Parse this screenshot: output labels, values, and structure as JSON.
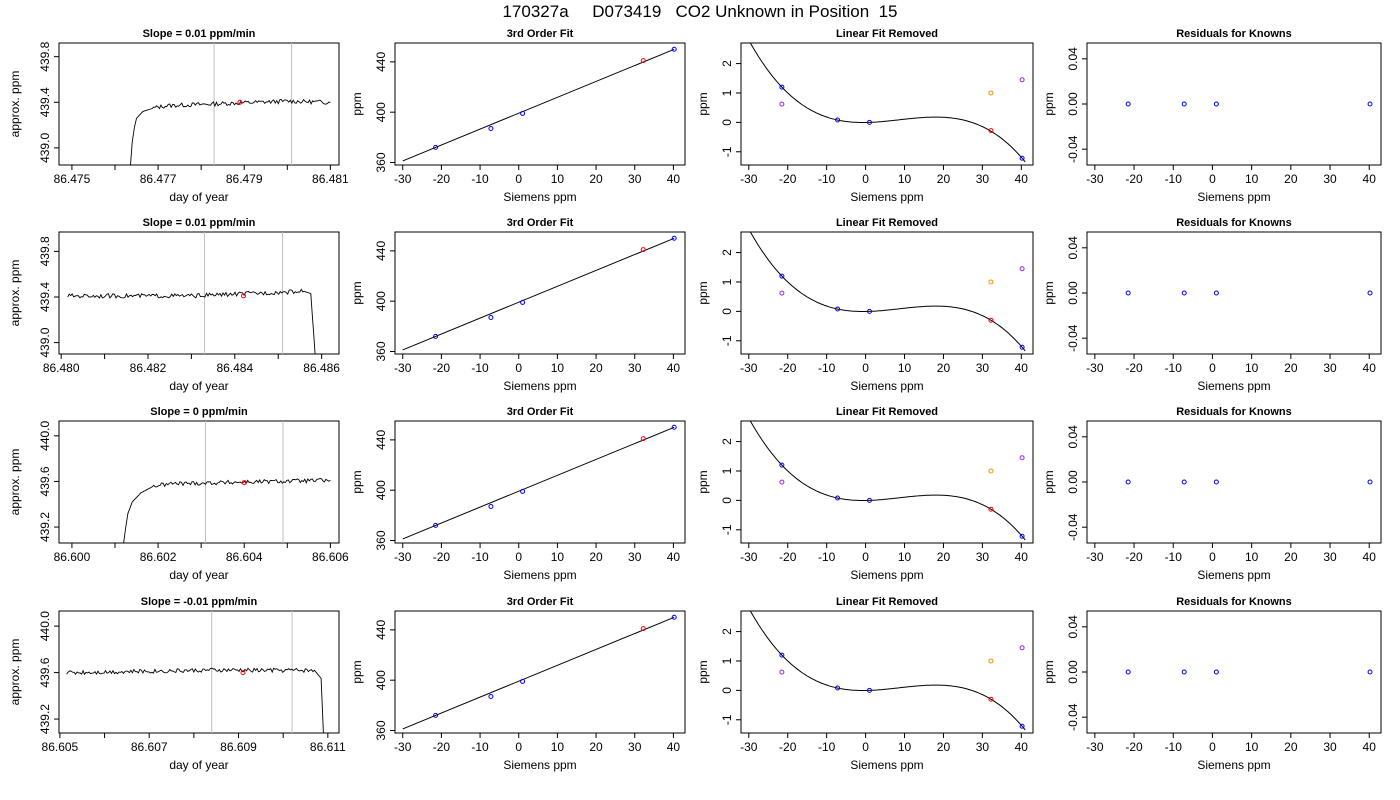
{
  "title": "170327a     D073419   CO2 Unknown in Position  15",
  "colors": {
    "unknown": "#ff0000",
    "standard": "#0000ff",
    "resid_a": "#ff8c00",
    "resid_b": "#a020f0",
    "vline": "#bebebe"
  },
  "chart_data": [
    {
      "type": "line",
      "title": "Slope =  0.01  ppm/min",
      "xlabel": "day of year",
      "ylabel": "approx. ppm",
      "xlim": [
        86.4747,
        86.4812
      ],
      "ylim": [
        438.85,
        439.92
      ],
      "xticks": [
        86.475,
        86.476,
        86.477,
        86.478,
        86.479,
        86.48,
        86.481
      ],
      "xtick_labels": [
        "86.475",
        "",
        "86.477",
        "",
        "86.479",
        "",
        "86.481"
      ],
      "yticks": [
        439.0,
        439.4,
        439.8
      ],
      "ytick_labels": [
        "439.0",
        "439.4",
        "439.8"
      ],
      "vlines": [
        86.4783,
        86.4801
      ],
      "marker": {
        "x": 86.4789,
        "y": 439.4
      },
      "segments": [
        [
          86.47636,
          438.85
        ],
        [
          86.4764,
          439.05
        ],
        [
          86.47645,
          439.18
        ],
        [
          86.4765,
          439.26
        ],
        [
          86.47665,
          439.32
        ],
        [
          86.4769,
          439.35
        ],
        [
          86.4772,
          439.37
        ],
        [
          86.48,
          439.41
        ],
        [
          86.481,
          439.4
        ]
      ]
    },
    {
      "type": "scatter",
      "title": "3rd Order Fit",
      "xlabel": "Siemens ppm",
      "ylabel": "ppm",
      "xlim": [
        -32,
        43
      ],
      "ylim": [
        358,
        455
      ],
      "xticks": [
        -30,
        -20,
        -10,
        0,
        10,
        20,
        30,
        40
      ],
      "xtick_labels": [
        "-30",
        "-20",
        "-10",
        "0",
        "10",
        "20",
        "30",
        "40"
      ],
      "yticks": [
        360,
        400,
        440
      ],
      "ytick_labels": [
        "360",
        "400",
        "440"
      ],
      "points": [
        {
          "x": -21.5,
          "y": 372
        },
        {
          "x": -7.2,
          "y": 387
        },
        {
          "x": 1.0,
          "y": 399
        },
        {
          "x": 40.2,
          "y": 450
        }
      ],
      "unknown": {
        "x": 32.2,
        "y": 441
      }
    },
    {
      "type": "scatter",
      "title": "Linear Fit Removed",
      "xlabel": "Siemens ppm",
      "ylabel": "ppm",
      "xlim": [
        -32,
        43
      ],
      "ylim": [
        -1.45,
        2.7
      ],
      "xticks": [
        -30,
        -20,
        -10,
        0,
        10,
        20,
        30,
        40
      ],
      "xtick_labels": [
        "-30",
        "-20",
        "-10",
        "0",
        "10",
        "20",
        "30",
        "40"
      ],
      "yticks": [
        -1,
        0,
        1,
        2
      ],
      "ytick_labels": [
        "-1",
        "0",
        "1",
        "2"
      ],
      "points": [
        {
          "x": -21.5,
          "y": 1.2
        },
        {
          "x": -7.2,
          "y": 0.08
        },
        {
          "x": 1.0,
          "y": 0.0
        },
        {
          "x": 40.2,
          "y": -1.22
        }
      ],
      "unknown": {
        "x": 32.2,
        "y": -0.28
      },
      "extra": [
        {
          "x": -21.5,
          "y": 0.62,
          "color": "#a020f0"
        },
        {
          "x": 32.2,
          "y": 1.0,
          "color": "#ff8c00"
        },
        {
          "x": 40.2,
          "y": 1.45,
          "color": "#a020f0"
        }
      ]
    },
    {
      "type": "scatter",
      "title": "Residuals for Knowns",
      "xlabel": "Siemens ppm",
      "ylabel": "ppm",
      "xlim": [
        -32,
        43
      ],
      "ylim": [
        -0.054,
        0.054
      ],
      "xticks": [
        -30,
        -20,
        -10,
        0,
        10,
        20,
        30,
        40
      ],
      "xtick_labels": [
        "-30",
        "-20",
        "-10",
        "0",
        "10",
        "20",
        "30",
        "40"
      ],
      "yticks": [
        -0.04,
        0.0,
        0.04
      ],
      "ytick_labels": [
        "-0.04",
        "0.00",
        "0.04"
      ],
      "points": [
        {
          "x": -21.5,
          "y": 0
        },
        {
          "x": -7.2,
          "y": 0
        },
        {
          "x": 1.0,
          "y": 0
        },
        {
          "x": 40.2,
          "y": 0
        }
      ]
    },
    {
      "type": "line",
      "title": "Slope =  0.01  ppm/min",
      "xlabel": "day of year",
      "ylabel": "approx. ppm",
      "xlim": [
        86.47995,
        86.4864
      ],
      "ylim": [
        438.9,
        439.97
      ],
      "xticks": [
        86.48,
        86.481,
        86.482,
        86.483,
        86.484,
        86.485,
        86.486
      ],
      "xtick_labels": [
        "86.480",
        "",
        "86.482",
        "",
        "86.484",
        "",
        "86.486"
      ],
      "yticks": [
        439.0,
        439.4,
        439.8
      ],
      "ytick_labels": [
        "439.0",
        "439.4",
        "439.8"
      ],
      "vlines": [
        86.4833,
        86.4851
      ],
      "marker": {
        "x": 86.4842,
        "y": 439.41
      },
      "segments": [
        [
          86.48015,
          439.41
        ],
        [
          86.483,
          439.41
        ],
        [
          86.4856,
          439.45
        ],
        [
          86.48575,
          439.43
        ],
        [
          86.48585,
          438.9
        ]
      ]
    },
    {
      "type": "scatter",
      "title": "3rd Order Fit",
      "xlabel": "Siemens ppm",
      "ylabel": "ppm",
      "xlim": [
        -32,
        43
      ],
      "ylim": [
        358,
        455
      ],
      "xticks": [
        -30,
        -20,
        -10,
        0,
        10,
        20,
        30,
        40
      ],
      "xtick_labels": [
        "-30",
        "-20",
        "-10",
        "0",
        "10",
        "20",
        "30",
        "40"
      ],
      "yticks": [
        360,
        400,
        440
      ],
      "ytick_labels": [
        "360",
        "400",
        "440"
      ],
      "points": [
        {
          "x": -21.5,
          "y": 372
        },
        {
          "x": -7.2,
          "y": 387
        },
        {
          "x": 1.0,
          "y": 399
        },
        {
          "x": 40.2,
          "y": 450
        }
      ],
      "unknown": {
        "x": 32.2,
        "y": 441
      }
    },
    {
      "type": "scatter",
      "title": "Linear Fit Removed",
      "xlabel": "Siemens ppm",
      "ylabel": "ppm",
      "xlim": [
        -32,
        43
      ],
      "ylim": [
        -1.45,
        2.7
      ],
      "xticks": [
        -30,
        -20,
        -10,
        0,
        10,
        20,
        30,
        40
      ],
      "xtick_labels": [
        "-30",
        "-20",
        "-10",
        "0",
        "10",
        "20",
        "30",
        "40"
      ],
      "yticks": [
        -1,
        0,
        1,
        2
      ],
      "ytick_labels": [
        "-1",
        "0",
        "1",
        "2"
      ],
      "points": [
        {
          "x": -21.5,
          "y": 1.2
        },
        {
          "x": -7.2,
          "y": 0.08
        },
        {
          "x": 1.0,
          "y": 0.0
        },
        {
          "x": 40.2,
          "y": -1.22
        }
      ],
      "unknown": {
        "x": 32.2,
        "y": -0.3
      },
      "extra": [
        {
          "x": -21.5,
          "y": 0.62,
          "color": "#a020f0"
        },
        {
          "x": 32.2,
          "y": 1.0,
          "color": "#ff8c00"
        },
        {
          "x": 40.2,
          "y": 1.45,
          "color": "#a020f0"
        }
      ]
    },
    {
      "type": "scatter",
      "title": "Residuals for Knowns",
      "xlabel": "Siemens ppm",
      "ylabel": "ppm",
      "xlim": [
        -32,
        43
      ],
      "ylim": [
        -0.054,
        0.054
      ],
      "xticks": [
        -30,
        -20,
        -10,
        0,
        10,
        20,
        30,
        40
      ],
      "xtick_labels": [
        "-30",
        "-20",
        "-10",
        "0",
        "10",
        "20",
        "30",
        "40"
      ],
      "yticks": [
        -0.04,
        0.0,
        0.04
      ],
      "ytick_labels": [
        "-0.04",
        "0.00",
        "0.04"
      ],
      "points": [
        {
          "x": -21.5,
          "y": 0
        },
        {
          "x": -7.2,
          "y": 0
        },
        {
          "x": 1.0,
          "y": 0
        },
        {
          "x": 40.2,
          "y": 0
        }
      ]
    },
    {
      "type": "line",
      "title": "Slope =  0  ppm/min",
      "xlabel": "day of year",
      "ylabel": "approx. ppm",
      "xlim": [
        86.5997,
        86.6062
      ],
      "ylim": [
        439.06,
        440.13
      ],
      "xticks": [
        86.6,
        86.601,
        86.602,
        86.603,
        86.604,
        86.605,
        86.606
      ],
      "xtick_labels": [
        "86.600",
        "",
        "86.602",
        "",
        "86.604",
        "",
        "86.606"
      ],
      "yticks": [
        439.2,
        439.6,
        440.0
      ],
      "ytick_labels": [
        "439.2",
        "439.6",
        "440.0"
      ],
      "vlines": [
        86.6031,
        86.6049
      ],
      "marker": {
        "x": 86.604,
        "y": 439.59
      },
      "segments": [
        [
          86.6012,
          439.06
        ],
        [
          86.60125,
          439.2
        ],
        [
          86.6013,
          439.32
        ],
        [
          86.6014,
          439.42
        ],
        [
          86.6016,
          439.5
        ],
        [
          86.6019,
          439.56
        ],
        [
          86.6023,
          439.58
        ],
        [
          86.606,
          439.61
        ]
      ]
    },
    {
      "type": "scatter",
      "title": "3rd Order Fit",
      "xlabel": "Siemens ppm",
      "ylabel": "ppm",
      "xlim": [
        -32,
        43
      ],
      "ylim": [
        358,
        455
      ],
      "xticks": [
        -30,
        -20,
        -10,
        0,
        10,
        20,
        30,
        40
      ],
      "xtick_labels": [
        "-30",
        "-20",
        "-10",
        "0",
        "10",
        "20",
        "30",
        "40"
      ],
      "yticks": [
        360,
        400,
        440
      ],
      "ytick_labels": [
        "360",
        "400",
        "440"
      ],
      "points": [
        {
          "x": -21.5,
          "y": 372
        },
        {
          "x": -7.2,
          "y": 387
        },
        {
          "x": 1.0,
          "y": 399
        },
        {
          "x": 40.2,
          "y": 450
        }
      ],
      "unknown": {
        "x": 32.2,
        "y": 441
      }
    },
    {
      "type": "scatter",
      "title": "Linear Fit Removed",
      "xlabel": "Siemens ppm",
      "ylabel": "ppm",
      "xlim": [
        -32,
        43
      ],
      "ylim": [
        -1.45,
        2.7
      ],
      "xticks": [
        -30,
        -20,
        -10,
        0,
        10,
        20,
        30,
        40
      ],
      "xtick_labels": [
        "-30",
        "-20",
        "-10",
        "0",
        "10",
        "20",
        "30",
        "40"
      ],
      "yticks": [
        -1,
        0,
        1,
        2
      ],
      "ytick_labels": [
        "-1",
        "0",
        "1",
        "2"
      ],
      "points": [
        {
          "x": -21.5,
          "y": 1.2
        },
        {
          "x": -7.2,
          "y": 0.08
        },
        {
          "x": 1.0,
          "y": 0.0
        },
        {
          "x": 40.2,
          "y": -1.22
        }
      ],
      "unknown": {
        "x": 32.2,
        "y": -0.3
      },
      "extra": [
        {
          "x": -21.5,
          "y": 0.62,
          "color": "#a020f0"
        },
        {
          "x": 32.2,
          "y": 1.0,
          "color": "#ff8c00"
        },
        {
          "x": 40.2,
          "y": 1.45,
          "color": "#a020f0"
        }
      ]
    },
    {
      "type": "scatter",
      "title": "Residuals for Knowns",
      "xlabel": "Siemens ppm",
      "ylabel": "ppm",
      "xlim": [
        -32,
        43
      ],
      "ylim": [
        -0.054,
        0.054
      ],
      "xticks": [
        -30,
        -20,
        -10,
        0,
        10,
        20,
        30,
        40
      ],
      "xtick_labels": [
        "-30",
        "-20",
        "-10",
        "0",
        "10",
        "20",
        "30",
        "40"
      ],
      "yticks": [
        -0.04,
        0.0,
        0.04
      ],
      "ytick_labels": [
        "-0.04",
        "0.00",
        "0.04"
      ],
      "points": [
        {
          "x": -21.5,
          "y": 0
        },
        {
          "x": -7.2,
          "y": 0
        },
        {
          "x": 1.0,
          "y": 0
        },
        {
          "x": 40.2,
          "y": 0
        }
      ]
    },
    {
      "type": "line",
      "title": "Slope =  -0.01  ppm/min",
      "xlabel": "day of year",
      "ylabel": "approx. ppm",
      "xlim": [
        86.60498,
        86.61125
      ],
      "ylim": [
        439.08,
        440.13
      ],
      "xticks": [
        86.605,
        86.606,
        86.607,
        86.608,
        86.609,
        86.61,
        86.611
      ],
      "xtick_labels": [
        "86.605",
        "",
        "86.607",
        "",
        "86.609",
        "",
        "86.611"
      ],
      "yticks": [
        439.2,
        439.6,
        440.0
      ],
      "ytick_labels": [
        "439.2",
        "439.6",
        "440.0"
      ],
      "vlines": [
        86.6084,
        86.6102
      ],
      "marker": {
        "x": 86.6091,
        "y": 439.6
      },
      "segments": [
        [
          86.60515,
          439.6
        ],
        [
          86.6083,
          439.62
        ],
        [
          86.6107,
          439.62
        ],
        [
          86.61085,
          439.55
        ],
        [
          86.6109,
          439.08
        ]
      ]
    },
    {
      "type": "scatter",
      "title": "3rd Order Fit",
      "xlabel": "Siemens ppm",
      "ylabel": "ppm",
      "xlim": [
        -32,
        43
      ],
      "ylim": [
        358,
        455
      ],
      "xticks": [
        -30,
        -20,
        -10,
        0,
        10,
        20,
        30,
        40
      ],
      "xtick_labels": [
        "-30",
        "-20",
        "-10",
        "0",
        "10",
        "20",
        "30",
        "40"
      ],
      "yticks": [
        360,
        400,
        440
      ],
      "ytick_labels": [
        "360",
        "400",
        "440"
      ],
      "points": [
        {
          "x": -21.5,
          "y": 372
        },
        {
          "x": -7.2,
          "y": 387
        },
        {
          "x": 1.0,
          "y": 399
        },
        {
          "x": 40.2,
          "y": 450
        }
      ],
      "unknown": {
        "x": 32.2,
        "y": 441
      }
    },
    {
      "type": "scatter",
      "title": "Linear Fit Removed",
      "xlabel": "Siemens ppm",
      "ylabel": "ppm",
      "xlim": [
        -32,
        43
      ],
      "ylim": [
        -1.45,
        2.7
      ],
      "xticks": [
        -30,
        -20,
        -10,
        0,
        10,
        20,
        30,
        40
      ],
      "xtick_labels": [
        "-30",
        "-20",
        "-10",
        "0",
        "10",
        "20",
        "30",
        "40"
      ],
      "yticks": [
        -1,
        0,
        1,
        2
      ],
      "ytick_labels": [
        "-1",
        "0",
        "1",
        "2"
      ],
      "points": [
        {
          "x": -21.5,
          "y": 1.2
        },
        {
          "x": -7.2,
          "y": 0.08
        },
        {
          "x": 1.0,
          "y": 0.0
        },
        {
          "x": 40.2,
          "y": -1.22
        }
      ],
      "unknown": {
        "x": 32.2,
        "y": -0.3
      },
      "extra": [
        {
          "x": -21.5,
          "y": 0.62,
          "color": "#a020f0"
        },
        {
          "x": 32.2,
          "y": 1.0,
          "color": "#ff8c00"
        },
        {
          "x": 40.2,
          "y": 1.45,
          "color": "#a020f0"
        }
      ]
    },
    {
      "type": "scatter",
      "title": "Residuals for Knowns",
      "xlabel": "Siemens ppm",
      "ylabel": "ppm",
      "xlim": [
        -32,
        43
      ],
      "ylim": [
        -0.054,
        0.054
      ],
      "xticks": [
        -30,
        -20,
        -10,
        0,
        10,
        20,
        30,
        40
      ],
      "xtick_labels": [
        "-30",
        "-20",
        "-10",
        "0",
        "10",
        "20",
        "30",
        "40"
      ],
      "yticks": [
        -0.04,
        0.0,
        0.04
      ],
      "ytick_labels": [
        "-0.04",
        "0.00",
        "0.04"
      ],
      "points": [
        {
          "x": -21.5,
          "y": 0
        },
        {
          "x": -7.2,
          "y": 0
        },
        {
          "x": 1.0,
          "y": 0
        },
        {
          "x": 40.2,
          "y": 0
        }
      ]
    }
  ]
}
